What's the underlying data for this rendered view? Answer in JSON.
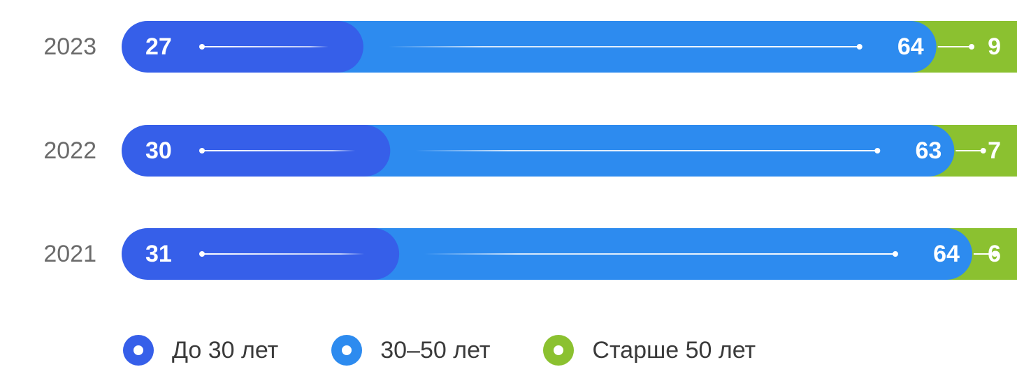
{
  "chart_data": {
    "type": "bar",
    "orientation": "horizontal",
    "stacked": true,
    "categories": [
      "2023",
      "2022",
      "2021"
    ],
    "series": [
      {
        "name": "До 30 лет",
        "values": [
          27,
          30,
          31
        ],
        "color": "#365fe9"
      },
      {
        "name": "30–50 лет",
        "values": [
          64,
          63,
          64
        ],
        "color": "#2d8bef"
      },
      {
        "name": "Старше 50 лет",
        "values": [
          9,
          7,
          6
        ],
        "color": "#8bc130"
      }
    ],
    "xlim": [
      0,
      100
    ],
    "grid": false,
    "legend_position": "bottom",
    "title": "",
    "xlabel": "",
    "ylabel": ""
  }
}
